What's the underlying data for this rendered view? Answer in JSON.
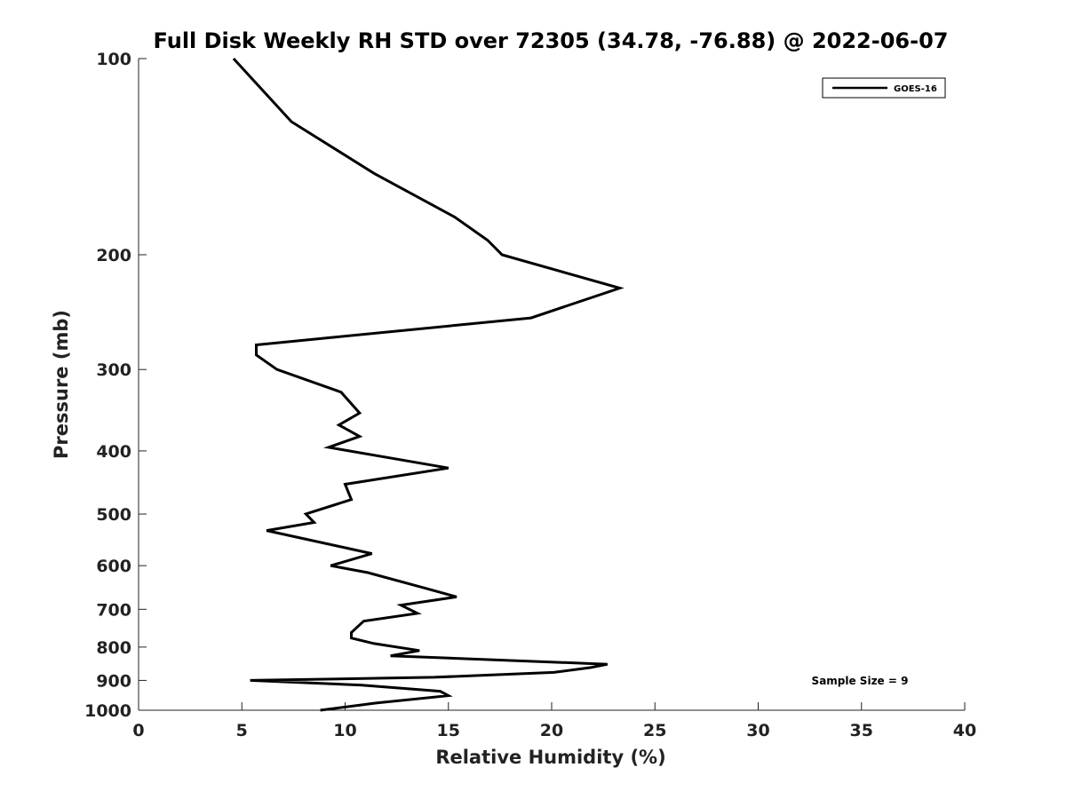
{
  "chart_data": {
    "type": "line",
    "title": "Full Disk Weekly RH STD over 72305 (34.78, -76.88) @ 2022-06-07",
    "xlabel": "Relative Humidity (%)",
    "ylabel": "Pressure (mb)",
    "xlim": [
      0,
      40
    ],
    "ylim": [
      100,
      1000
    ],
    "y_scale": "log",
    "y_reversed": true,
    "x_ticks": [
      "0",
      "5",
      "10",
      "15",
      "20",
      "25",
      "30",
      "35",
      "40"
    ],
    "y_ticks": [
      "100",
      "200",
      "300",
      "400",
      "500",
      "600",
      "700",
      "800",
      "900",
      "1000"
    ],
    "grid": false,
    "legend": {
      "position": "top-right",
      "entries": [
        "GOES-16"
      ]
    },
    "annotation": "Sample Size = 9",
    "series": [
      {
        "name": "GOES-16",
        "color": "#000000",
        "x": [
          4.6,
          7.4,
          11.4,
          15.3,
          16.9,
          17.6,
          23.3,
          19.0,
          5.7,
          5.7,
          6.7,
          9.8,
          10.7,
          9.7,
          10.7,
          9.2,
          15.0,
          10.0,
          10.3,
          8.1,
          8.5,
          6.2,
          11.3,
          9.3,
          11.1,
          13.9,
          15.4,
          12.7,
          13.5,
          10.9,
          10.3,
          10.3,
          11.4,
          13.6,
          12.2,
          22.7,
          21.9,
          20.1,
          14.3,
          5.4,
          10.8,
          14.6,
          15.0,
          11.5,
          8.8
        ],
        "y": [
          100,
          125,
          150,
          175,
          190,
          200,
          225,
          250,
          275,
          285,
          300,
          325,
          350,
          365,
          380,
          395,
          425,
          450,
          475,
          500,
          515,
          530,
          575,
          600,
          615,
          650,
          670,
          690,
          710,
          730,
          760,
          775,
          790,
          810,
          825,
          850,
          860,
          875,
          890,
          900,
          915,
          935,
          950,
          975,
          1000
        ]
      }
    ]
  }
}
